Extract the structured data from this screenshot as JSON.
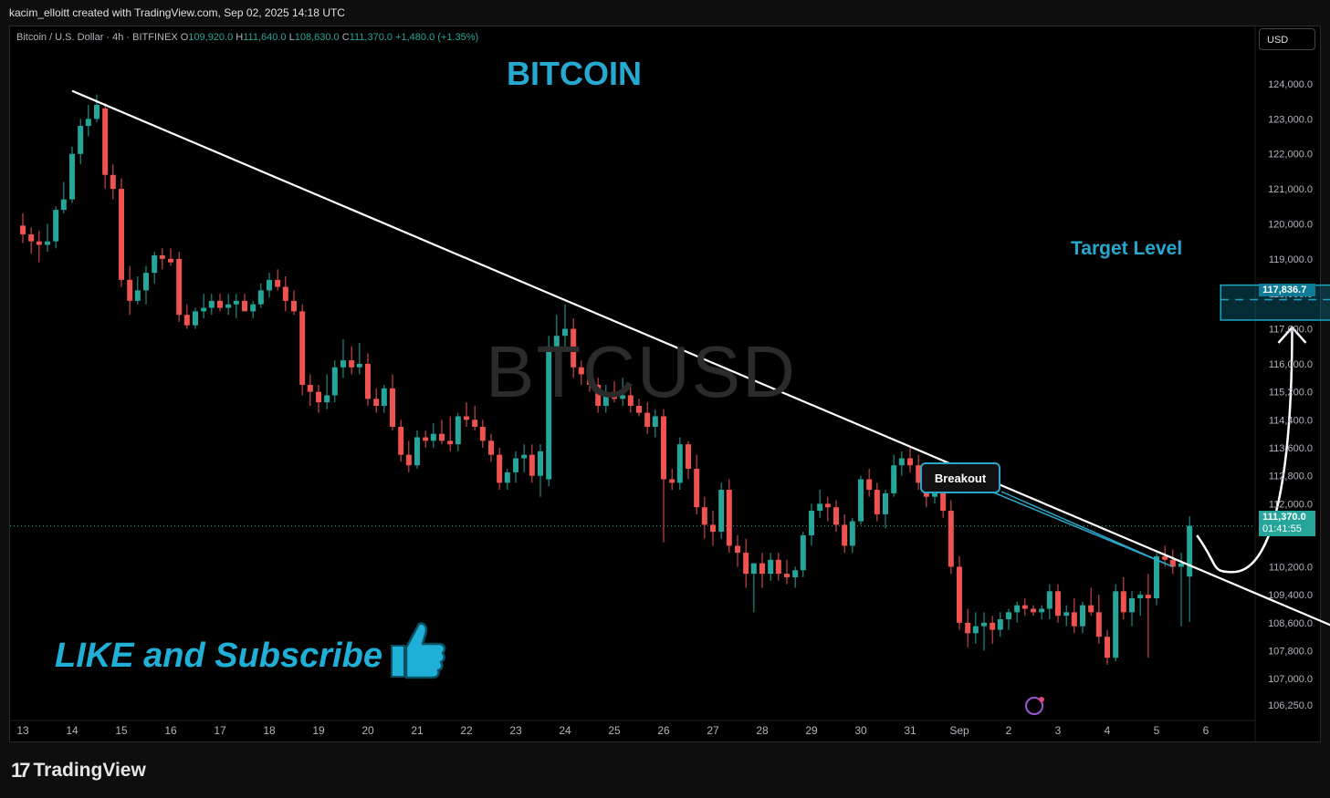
{
  "header": {
    "attribution": "kacim_elloitt created with TradingView.com, Sep 02, 2025 14:18 UTC"
  },
  "legend": {
    "symbol": "Bitcoin / U.S. Dollar · 4h · BITFINEX",
    "o_label": "O",
    "o_value": "109,920.0",
    "h_label": "H",
    "h_value": "111,640.0",
    "l_label": "L",
    "l_value": "108,630.0",
    "c_label": "C",
    "c_value": "111,370.0",
    "change": "+1,480.0 (+1.35%)"
  },
  "currency": "USD",
  "watermark": "BTCUSD",
  "annotations": {
    "title": "BITCOIN",
    "target_label": "Target Level",
    "breakout_label": "Breakout",
    "cta": "LIKE and Subscribe"
  },
  "price_tags": {
    "target_price": "117,836.7",
    "last_price": "111,370.0",
    "countdown": "01:41:55"
  },
  "footer": {
    "brand": "TradingView"
  },
  "colors": {
    "up": "#26a69a",
    "down": "#ef5350",
    "accent": "#26a9d0",
    "trendline": "#ffffff"
  },
  "chart_data": {
    "type": "candlestick",
    "title": "BITCOIN",
    "ylim": [
      106000,
      124600
    ],
    "y_ticks": [
      "124,000.0",
      "123,000.0",
      "122,000.0",
      "121,000.0",
      "120,000.0",
      "119,000.0",
      "118,000.0",
      "117,000.0",
      "116,000.0",
      "115,200.0",
      "114,400.0",
      "113,600.0",
      "112,800.0",
      "112,000.0",
      "110,200.0",
      "109,400.0",
      "108,600.0",
      "107,800.0",
      "107,000.0",
      "106,250.0"
    ],
    "x_ticks": [
      "13",
      "14",
      "15",
      "16",
      "17",
      "18",
      "19",
      "20",
      "21",
      "22",
      "23",
      "24",
      "25",
      "26",
      "27",
      "28",
      "29",
      "30",
      "31",
      "Sep",
      "2",
      "3",
      "4",
      "5",
      "6"
    ],
    "x_tick_days": [
      13,
      14,
      15,
      16,
      17,
      18,
      19,
      20,
      21,
      22,
      23,
      24,
      25,
      26,
      27,
      28,
      29,
      30,
      31,
      32,
      33,
      34,
      35,
      36,
      37
    ],
    "candles": [
      {
        "t": 13.0,
        "o": 119950,
        "h": 120300,
        "l": 119450,
        "c": 119700
      },
      {
        "t": 13.17,
        "o": 119700,
        "h": 119900,
        "l": 119150,
        "c": 119500
      },
      {
        "t": 13.33,
        "o": 119500,
        "h": 119800,
        "l": 118900,
        "c": 119400
      },
      {
        "t": 13.5,
        "o": 119400,
        "h": 120000,
        "l": 119200,
        "c": 119500
      },
      {
        "t": 13.67,
        "o": 119500,
        "h": 120500,
        "l": 119300,
        "c": 120400
      },
      {
        "t": 13.83,
        "o": 120400,
        "h": 121200,
        "l": 120300,
        "c": 120700
      },
      {
        "t": 14.0,
        "o": 120700,
        "h": 122200,
        "l": 120600,
        "c": 122000
      },
      {
        "t": 14.17,
        "o": 122000,
        "h": 123000,
        "l": 121700,
        "c": 122800
      },
      {
        "t": 14.33,
        "o": 122800,
        "h": 123400,
        "l": 122500,
        "c": 123000
      },
      {
        "t": 14.5,
        "o": 123000,
        "h": 123700,
        "l": 122900,
        "c": 123400
      },
      {
        "t": 14.67,
        "o": 123300,
        "h": 123450,
        "l": 121000,
        "c": 121400
      },
      {
        "t": 14.83,
        "o": 121400,
        "h": 121700,
        "l": 120700,
        "c": 121000
      },
      {
        "t": 15.0,
        "o": 121000,
        "h": 121300,
        "l": 118200,
        "c": 118400
      },
      {
        "t": 15.17,
        "o": 118400,
        "h": 118800,
        "l": 117400,
        "c": 117800
      },
      {
        "t": 15.33,
        "o": 117800,
        "h": 118500,
        "l": 117700,
        "c": 118100
      },
      {
        "t": 15.5,
        "o": 118100,
        "h": 118800,
        "l": 117700,
        "c": 118600
      },
      {
        "t": 15.67,
        "o": 118600,
        "h": 119200,
        "l": 118300,
        "c": 119100
      },
      {
        "t": 15.83,
        "o": 119100,
        "h": 119300,
        "l": 118700,
        "c": 119000
      },
      {
        "t": 16.0,
        "o": 119000,
        "h": 119300,
        "l": 118800,
        "c": 118900
      },
      {
        "t": 16.17,
        "o": 119000,
        "h": 119200,
        "l": 117200,
        "c": 117400
      },
      {
        "t": 16.33,
        "o": 117400,
        "h": 117700,
        "l": 117000,
        "c": 117100
      },
      {
        "t": 16.5,
        "o": 117100,
        "h": 117600,
        "l": 117000,
        "c": 117500
      },
      {
        "t": 16.67,
        "o": 117500,
        "h": 118000,
        "l": 117300,
        "c": 117600
      },
      {
        "t": 16.83,
        "o": 117600,
        "h": 118000,
        "l": 117400,
        "c": 117800
      },
      {
        "t": 17.0,
        "o": 117800,
        "h": 118000,
        "l": 117500,
        "c": 117600
      },
      {
        "t": 17.17,
        "o": 117600,
        "h": 118000,
        "l": 117400,
        "c": 117700
      },
      {
        "t": 17.33,
        "o": 117700,
        "h": 118000,
        "l": 117300,
        "c": 117800
      },
      {
        "t": 17.5,
        "o": 117800,
        "h": 118000,
        "l": 117600,
        "c": 117500
      },
      {
        "t": 17.67,
        "o": 117500,
        "h": 117800,
        "l": 117300,
        "c": 117700
      },
      {
        "t": 17.83,
        "o": 117700,
        "h": 118300,
        "l": 117600,
        "c": 118100
      },
      {
        "t": 18.0,
        "o": 118100,
        "h": 118600,
        "l": 117900,
        "c": 118400
      },
      {
        "t": 18.17,
        "o": 118400,
        "h": 118700,
        "l": 118100,
        "c": 118200
      },
      {
        "t": 18.33,
        "o": 118200,
        "h": 118500,
        "l": 117500,
        "c": 117800
      },
      {
        "t": 18.5,
        "o": 117800,
        "h": 118100,
        "l": 117400,
        "c": 117500
      },
      {
        "t": 18.67,
        "o": 117500,
        "h": 117700,
        "l": 115100,
        "c": 115400
      },
      {
        "t": 18.83,
        "o": 115400,
        "h": 115700,
        "l": 114800,
        "c": 115200
      },
      {
        "t": 19.0,
        "o": 115200,
        "h": 115400,
        "l": 114600,
        "c": 114900
      },
      {
        "t": 19.17,
        "o": 114900,
        "h": 115700,
        "l": 114700,
        "c": 115100
      },
      {
        "t": 19.33,
        "o": 115100,
        "h": 116100,
        "l": 114900,
        "c": 115900
      },
      {
        "t": 19.5,
        "o": 115900,
        "h": 116700,
        "l": 115600,
        "c": 116100
      },
      {
        "t": 19.67,
        "o": 116100,
        "h": 116500,
        "l": 115700,
        "c": 115900
      },
      {
        "t": 19.83,
        "o": 115900,
        "h": 116600,
        "l": 115700,
        "c": 116000
      },
      {
        "t": 20.0,
        "o": 116000,
        "h": 116300,
        "l": 114800,
        "c": 115000
      },
      {
        "t": 20.17,
        "o": 115000,
        "h": 115300,
        "l": 114600,
        "c": 114800
      },
      {
        "t": 20.33,
        "o": 114800,
        "h": 115400,
        "l": 114600,
        "c": 115300
      },
      {
        "t": 20.5,
        "o": 115300,
        "h": 115700,
        "l": 114100,
        "c": 114200
      },
      {
        "t": 20.67,
        "o": 114200,
        "h": 114400,
        "l": 113200,
        "c": 113400
      },
      {
        "t": 20.83,
        "o": 113400,
        "h": 113800,
        "l": 112900,
        "c": 113100
      },
      {
        "t": 21.0,
        "o": 113100,
        "h": 114100,
        "l": 113000,
        "c": 113900
      },
      {
        "t": 21.17,
        "o": 113900,
        "h": 114100,
        "l": 113600,
        "c": 113800
      },
      {
        "t": 21.33,
        "o": 113800,
        "h": 114300,
        "l": 113600,
        "c": 114000
      },
      {
        "t": 21.5,
        "o": 114000,
        "h": 114400,
        "l": 113700,
        "c": 113800
      },
      {
        "t": 21.67,
        "o": 113800,
        "h": 114500,
        "l": 113500,
        "c": 113700
      },
      {
        "t": 21.83,
        "o": 113700,
        "h": 114600,
        "l": 113500,
        "c": 114500
      },
      {
        "t": 22.0,
        "o": 114500,
        "h": 114900,
        "l": 114200,
        "c": 114400
      },
      {
        "t": 22.17,
        "o": 114400,
        "h": 114800,
        "l": 114100,
        "c": 114200
      },
      {
        "t": 22.33,
        "o": 114200,
        "h": 114400,
        "l": 113600,
        "c": 113800
      },
      {
        "t": 22.5,
        "o": 113800,
        "h": 114000,
        "l": 113200,
        "c": 113400
      },
      {
        "t": 22.67,
        "o": 113400,
        "h": 113600,
        "l": 112400,
        "c": 112600
      },
      {
        "t": 22.83,
        "o": 112600,
        "h": 113000,
        "l": 112400,
        "c": 112900
      },
      {
        "t": 23.0,
        "o": 112900,
        "h": 113500,
        "l": 112600,
        "c": 113300
      },
      {
        "t": 23.17,
        "o": 113300,
        "h": 113700,
        "l": 112900,
        "c": 113400
      },
      {
        "t": 23.33,
        "o": 113400,
        "h": 113700,
        "l": 112600,
        "c": 112800
      },
      {
        "t": 23.5,
        "o": 112800,
        "h": 113700,
        "l": 112200,
        "c": 113500
      },
      {
        "t": 23.67,
        "o": 112700,
        "h": 116800,
        "l": 112500,
        "c": 116500
      },
      {
        "t": 23.83,
        "o": 116500,
        "h": 117400,
        "l": 116300,
        "c": 116800
      },
      {
        "t": 24.0,
        "o": 116800,
        "h": 117700,
        "l": 116500,
        "c": 117000
      },
      {
        "t": 24.17,
        "o": 117000,
        "h": 117300,
        "l": 115600,
        "c": 115900
      },
      {
        "t": 24.33,
        "o": 115900,
        "h": 116100,
        "l": 115400,
        "c": 115700
      },
      {
        "t": 24.5,
        "o": 115700,
        "h": 116000,
        "l": 115200,
        "c": 115400
      },
      {
        "t": 24.67,
        "o": 115400,
        "h": 115600,
        "l": 114600,
        "c": 114800
      },
      {
        "t": 24.83,
        "o": 114800,
        "h": 115400,
        "l": 114600,
        "c": 115200
      },
      {
        "t": 25.0,
        "o": 115200,
        "h": 115500,
        "l": 114900,
        "c": 115000
      },
      {
        "t": 25.17,
        "o": 115000,
        "h": 115600,
        "l": 114800,
        "c": 115100
      },
      {
        "t": 25.33,
        "o": 115100,
        "h": 115400,
        "l": 114600,
        "c": 114800
      },
      {
        "t": 25.5,
        "o": 114800,
        "h": 115000,
        "l": 114500,
        "c": 114600
      },
      {
        "t": 25.67,
        "o": 114600,
        "h": 114900,
        "l": 114000,
        "c": 114200
      },
      {
        "t": 25.83,
        "o": 114200,
        "h": 114700,
        "l": 113900,
        "c": 114500
      },
      {
        "t": 26.0,
        "o": 114500,
        "h": 114700,
        "l": 110900,
        "c": 112700
      },
      {
        "t": 26.17,
        "o": 112700,
        "h": 113000,
        "l": 112400,
        "c": 112600
      },
      {
        "t": 26.33,
        "o": 112600,
        "h": 113900,
        "l": 112400,
        "c": 113700
      },
      {
        "t": 26.5,
        "o": 113700,
        "h": 113800,
        "l": 112700,
        "c": 113000
      },
      {
        "t": 26.67,
        "o": 113000,
        "h": 113400,
        "l": 111700,
        "c": 111900
      },
      {
        "t": 26.83,
        "o": 111900,
        "h": 112200,
        "l": 111000,
        "c": 111400
      },
      {
        "t": 27.0,
        "o": 111400,
        "h": 111800,
        "l": 110800,
        "c": 111200
      },
      {
        "t": 27.17,
        "o": 111200,
        "h": 112600,
        "l": 111000,
        "c": 112400
      },
      {
        "t": 27.33,
        "o": 112400,
        "h": 112700,
        "l": 110600,
        "c": 110800
      },
      {
        "t": 27.5,
        "o": 110800,
        "h": 111100,
        "l": 110200,
        "c": 110600
      },
      {
        "t": 27.67,
        "o": 110600,
        "h": 111000,
        "l": 109600,
        "c": 110000
      },
      {
        "t": 27.83,
        "o": 110000,
        "h": 110300,
        "l": 108900,
        "c": 110300
      },
      {
        "t": 28.0,
        "o": 110300,
        "h": 110600,
        "l": 109600,
        "c": 110000
      },
      {
        "t": 28.17,
        "o": 110000,
        "h": 110600,
        "l": 109800,
        "c": 110400
      },
      {
        "t": 28.33,
        "o": 110400,
        "h": 110600,
        "l": 109800,
        "c": 110000
      },
      {
        "t": 28.5,
        "o": 110000,
        "h": 110400,
        "l": 109700,
        "c": 109900
      },
      {
        "t": 28.67,
        "o": 109900,
        "h": 110200,
        "l": 109600,
        "c": 110100
      },
      {
        "t": 28.83,
        "o": 110100,
        "h": 111200,
        "l": 109900,
        "c": 111100
      },
      {
        "t": 29.0,
        "o": 111100,
        "h": 112000,
        "l": 110800,
        "c": 111800
      },
      {
        "t": 29.17,
        "o": 111800,
        "h": 112400,
        "l": 111600,
        "c": 112000
      },
      {
        "t": 29.33,
        "o": 112000,
        "h": 112200,
        "l": 111500,
        "c": 111900
      },
      {
        "t": 29.5,
        "o": 111900,
        "h": 112100,
        "l": 111200,
        "c": 111400
      },
      {
        "t": 29.67,
        "o": 111400,
        "h": 111700,
        "l": 110600,
        "c": 110800
      },
      {
        "t": 29.83,
        "o": 110800,
        "h": 111600,
        "l": 110600,
        "c": 111500
      },
      {
        "t": 30.0,
        "o": 111500,
        "h": 112800,
        "l": 111400,
        "c": 112700
      },
      {
        "t": 30.17,
        "o": 112700,
        "h": 113000,
        "l": 112200,
        "c": 112400
      },
      {
        "t": 30.33,
        "o": 112400,
        "h": 112600,
        "l": 111500,
        "c": 111700
      },
      {
        "t": 30.5,
        "o": 111700,
        "h": 112400,
        "l": 111300,
        "c": 112300
      },
      {
        "t": 30.67,
        "o": 112300,
        "h": 113400,
        "l": 112200,
        "c": 113100
      },
      {
        "t": 30.83,
        "o": 113100,
        "h": 113500,
        "l": 112800,
        "c": 113300
      },
      {
        "t": 31.0,
        "o": 113300,
        "h": 113600,
        "l": 112900,
        "c": 113100
      },
      {
        "t": 31.17,
        "o": 113100,
        "h": 113400,
        "l": 112400,
        "c": 112600
      },
      {
        "t": 31.33,
        "o": 112600,
        "h": 112900,
        "l": 111900,
        "c": 112200
      },
      {
        "t": 31.5,
        "o": 112200,
        "h": 112900,
        "l": 112000,
        "c": 112800
      },
      {
        "t": 31.67,
        "o": 112800,
        "h": 113000,
        "l": 111600,
        "c": 111800
      },
      {
        "t": 31.83,
        "o": 111800,
        "h": 112100,
        "l": 110000,
        "c": 110200
      },
      {
        "t": 32.0,
        "o": 110200,
        "h": 110500,
        "l": 108400,
        "c": 108600
      },
      {
        "t": 32.17,
        "o": 108600,
        "h": 109000,
        "l": 107900,
        "c": 108300
      },
      {
        "t": 32.33,
        "o": 108300,
        "h": 108900,
        "l": 108000,
        "c": 108500
      },
      {
        "t": 32.5,
        "o": 108500,
        "h": 108900,
        "l": 107800,
        "c": 108600
      },
      {
        "t": 32.67,
        "o": 108600,
        "h": 108800,
        "l": 108000,
        "c": 108400
      },
      {
        "t": 32.83,
        "o": 108400,
        "h": 108900,
        "l": 108200,
        "c": 108700
      },
      {
        "t": 33.0,
        "o": 108700,
        "h": 109000,
        "l": 108400,
        "c": 108900
      },
      {
        "t": 33.17,
        "o": 108900,
        "h": 109200,
        "l": 108600,
        "c": 109100
      },
      {
        "t": 33.33,
        "o": 109100,
        "h": 109300,
        "l": 108800,
        "c": 109000
      },
      {
        "t": 33.5,
        "o": 109000,
        "h": 109100,
        "l": 108800,
        "c": 108900
      },
      {
        "t": 33.67,
        "o": 108900,
        "h": 109100,
        "l": 108700,
        "c": 109000
      },
      {
        "t": 33.83,
        "o": 109000,
        "h": 109700,
        "l": 108700,
        "c": 109500
      },
      {
        "t": 34.0,
        "o": 109500,
        "h": 109700,
        "l": 108600,
        "c": 108800
      },
      {
        "t": 34.17,
        "o": 108800,
        "h": 109100,
        "l": 108500,
        "c": 108900
      },
      {
        "t": 34.33,
        "o": 108900,
        "h": 109300,
        "l": 108300,
        "c": 108500
      },
      {
        "t": 34.5,
        "o": 108500,
        "h": 109200,
        "l": 108300,
        "c": 109100
      },
      {
        "t": 34.67,
        "o": 109100,
        "h": 109600,
        "l": 108800,
        "c": 108900
      },
      {
        "t": 34.83,
        "o": 108900,
        "h": 109400,
        "l": 108000,
        "c": 108200
      },
      {
        "t": 35.0,
        "o": 108200,
        "h": 108400,
        "l": 107400,
        "c": 107600
      },
      {
        "t": 35.17,
        "o": 107600,
        "h": 109700,
        "l": 107500,
        "c": 109500
      },
      {
        "t": 35.33,
        "o": 109500,
        "h": 109900,
        "l": 108700,
        "c": 108900
      },
      {
        "t": 35.5,
        "o": 108900,
        "h": 109500,
        "l": 108500,
        "c": 109300
      },
      {
        "t": 35.67,
        "o": 109300,
        "h": 109500,
        "l": 108800,
        "c": 109400
      },
      {
        "t": 35.83,
        "o": 109400,
        "h": 110000,
        "l": 107600,
        "c": 109300
      },
      {
        "t": 36.0,
        "o": 109300,
        "h": 110600,
        "l": 109100,
        "c": 110500
      },
      {
        "t": 36.17,
        "o": 110500,
        "h": 110800,
        "l": 110200,
        "c": 110400
      },
      {
        "t": 36.33,
        "o": 110400,
        "h": 110700,
        "l": 110000,
        "c": 110200
      },
      {
        "t": 36.5,
        "o": 110200,
        "h": 110600,
        "l": 108500,
        "c": 110300
      },
      {
        "t": 36.67,
        "o": 109920,
        "h": 111640,
        "l": 108630,
        "c": 111370
      }
    ],
    "trendline": {
      "t1": 14.0,
      "p1": 123800,
      "t2": 39.75,
      "p2": 108400
    },
    "target_zone": {
      "t1": 37.3,
      "t2": 41.0,
      "low": 117250,
      "high": 118250,
      "level": 117836.7
    },
    "last_price": 111370.0,
    "current_time": 36.67
  }
}
